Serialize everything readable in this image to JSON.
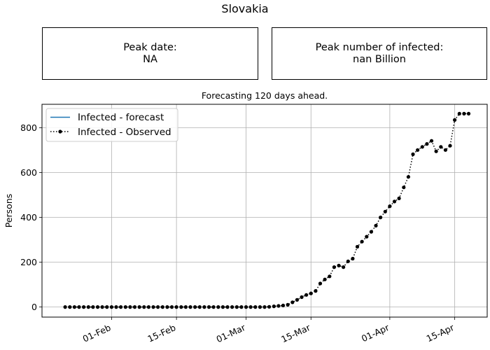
{
  "page": {
    "title": "Slovakia"
  },
  "info_boxes": {
    "peak_date": {
      "label": "Peak date:",
      "value": "NA"
    },
    "peak_number": {
      "label": "Peak number of infected:",
      "value": "nan Billion"
    }
  },
  "chart_data": {
    "type": "line",
    "title": "Forecasting 120 days ahead.",
    "xlabel": "",
    "ylabel": "Persons",
    "x_axis": {
      "type": "date",
      "range": [
        "2020-01-17",
        "2020-04-22"
      ],
      "ticks": [
        "2020-02-01",
        "2020-02-15",
        "2020-03-01",
        "2020-03-15",
        "2020-04-01",
        "2020-04-15"
      ],
      "tick_labels": [
        "01-Feb",
        "15-Feb",
        "01-Mar",
        "15-Mar",
        "01-Apr",
        "15-Apr"
      ]
    },
    "y_axis": {
      "range": [
        -45,
        905
      ],
      "ticks": [
        0,
        200,
        400,
        600,
        800
      ]
    },
    "grid": true,
    "legend": {
      "placement": "upper-left",
      "entries": [
        "Infected - forecast",
        "Infected - Observed"
      ]
    },
    "series": [
      {
        "name": "Infected - forecast",
        "color": "#1f77b4",
        "style": "solid",
        "x": [],
        "y": []
      },
      {
        "name": "Infected - Observed",
        "color": "#000000",
        "style": "dotted-with-dots",
        "x": [
          "2020-01-22",
          "2020-01-23",
          "2020-01-24",
          "2020-01-25",
          "2020-01-26",
          "2020-01-27",
          "2020-01-28",
          "2020-01-29",
          "2020-01-30",
          "2020-01-31",
          "2020-02-01",
          "2020-02-02",
          "2020-02-03",
          "2020-02-04",
          "2020-02-05",
          "2020-02-06",
          "2020-02-07",
          "2020-02-08",
          "2020-02-09",
          "2020-02-10",
          "2020-02-11",
          "2020-02-12",
          "2020-02-13",
          "2020-02-14",
          "2020-02-15",
          "2020-02-16",
          "2020-02-17",
          "2020-02-18",
          "2020-02-19",
          "2020-02-20",
          "2020-02-21",
          "2020-02-22",
          "2020-02-23",
          "2020-02-24",
          "2020-02-25",
          "2020-02-26",
          "2020-02-27",
          "2020-02-28",
          "2020-02-29",
          "2020-03-01",
          "2020-03-02",
          "2020-03-03",
          "2020-03-04",
          "2020-03-05",
          "2020-03-06",
          "2020-03-07",
          "2020-03-08",
          "2020-03-09",
          "2020-03-10",
          "2020-03-11",
          "2020-03-12",
          "2020-03-13",
          "2020-03-14",
          "2020-03-15",
          "2020-03-16",
          "2020-03-17",
          "2020-03-18",
          "2020-03-19",
          "2020-03-20",
          "2020-03-21",
          "2020-03-22",
          "2020-03-23",
          "2020-03-24",
          "2020-03-25",
          "2020-03-26",
          "2020-03-27",
          "2020-03-28",
          "2020-03-29",
          "2020-03-30",
          "2020-03-31",
          "2020-04-01",
          "2020-04-02",
          "2020-04-03",
          "2020-04-04",
          "2020-04-05",
          "2020-04-06",
          "2020-04-07",
          "2020-04-08",
          "2020-04-09",
          "2020-04-10",
          "2020-04-11",
          "2020-04-12",
          "2020-04-13",
          "2020-04-14",
          "2020-04-15",
          "2020-04-16",
          "2020-04-17",
          "2020-04-18"
        ],
        "y": [
          0,
          0,
          0,
          0,
          0,
          0,
          0,
          0,
          0,
          0,
          0,
          0,
          0,
          0,
          0,
          0,
          0,
          0,
          0,
          0,
          0,
          0,
          0,
          0,
          0,
          0,
          0,
          0,
          0,
          0,
          0,
          0,
          0,
          0,
          0,
          0,
          0,
          0,
          0,
          0,
          0,
          0,
          0,
          0,
          1,
          3,
          5,
          7,
          10,
          21,
          32,
          44,
          54,
          61,
          72,
          105,
          123,
          137,
          178,
          185,
          178,
          204,
          216,
          269,
          292,
          314,
          336,
          363,
          400,
          426,
          450,
          471,
          485,
          534,
          581,
          682,
          701,
          715,
          728,
          742,
          695,
          715,
          701,
          720,
          835,
          863,
          863,
          863
        ]
      }
    ]
  }
}
